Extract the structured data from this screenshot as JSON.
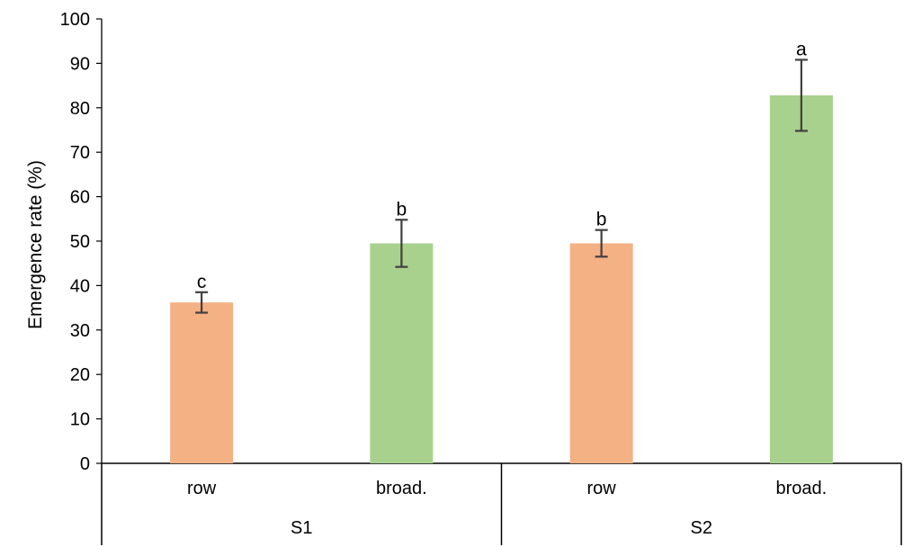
{
  "chart_data": {
    "type": "bar",
    "ylabel": "Emergence rate (%)",
    "ylim": [
      0,
      100
    ],
    "yticks": [
      0,
      10,
      20,
      30,
      40,
      50,
      60,
      70,
      80,
      90,
      100
    ],
    "groups": [
      {
        "label": "S1",
        "categories": [
          "row",
          "broad."
        ]
      },
      {
        "label": "S2",
        "categories": [
          "row",
          "broad."
        ]
      }
    ],
    "bars": [
      {
        "group": "S1",
        "category": "row",
        "value": 36.2,
        "error": 2.3,
        "letter": "c",
        "color": "#f4b183"
      },
      {
        "group": "S1",
        "category": "broad.",
        "value": 49.5,
        "error": 5.3,
        "letter": "b",
        "color": "#a9d18e"
      },
      {
        "group": "S2",
        "category": "row",
        "value": 49.5,
        "error": 3.0,
        "letter": "b",
        "color": "#f4b183"
      },
      {
        "group": "S2",
        "category": "broad.",
        "value": 82.8,
        "error": 8.0,
        "letter": "a",
        "color": "#a9d18e"
      }
    ],
    "grid": false,
    "legend": "none"
  }
}
